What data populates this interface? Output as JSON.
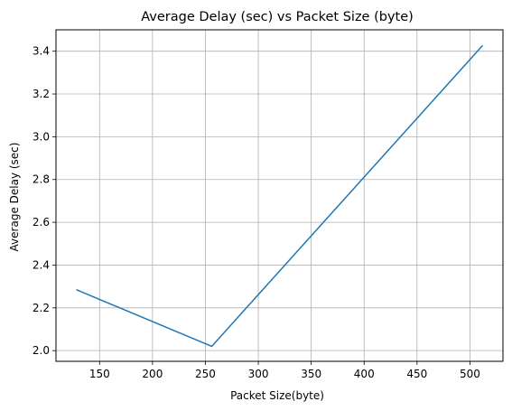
{
  "chart_data": {
    "type": "line",
    "title": "Average Delay (sec) vs Packet Size (byte)",
    "xlabel": "Packet Size(byte)",
    "ylabel": "Average Delay (sec)",
    "x": [
      128,
      256,
      512
    ],
    "series": [
      {
        "values": [
          2.285,
          2.02,
          3.427
        ],
        "color": "#1f77b4"
      }
    ],
    "xlim": [
      108.8,
      531.2
    ],
    "ylim": [
      1.95,
      3.5
    ],
    "xticks": [
      150,
      200,
      250,
      300,
      350,
      400,
      450,
      500
    ],
    "xtick_labels": [
      "150",
      "200",
      "250",
      "300",
      "350",
      "400",
      "450",
      "500"
    ],
    "yticks": [
      2.0,
      2.2,
      2.4,
      2.6,
      2.8,
      3.0,
      3.2,
      3.4
    ],
    "ytick_labels": [
      "2.0",
      "2.2",
      "2.4",
      "2.6",
      "2.8",
      "3.0",
      "3.2",
      "3.4"
    ],
    "grid": true,
    "grid_color": "#b0b0b0"
  }
}
